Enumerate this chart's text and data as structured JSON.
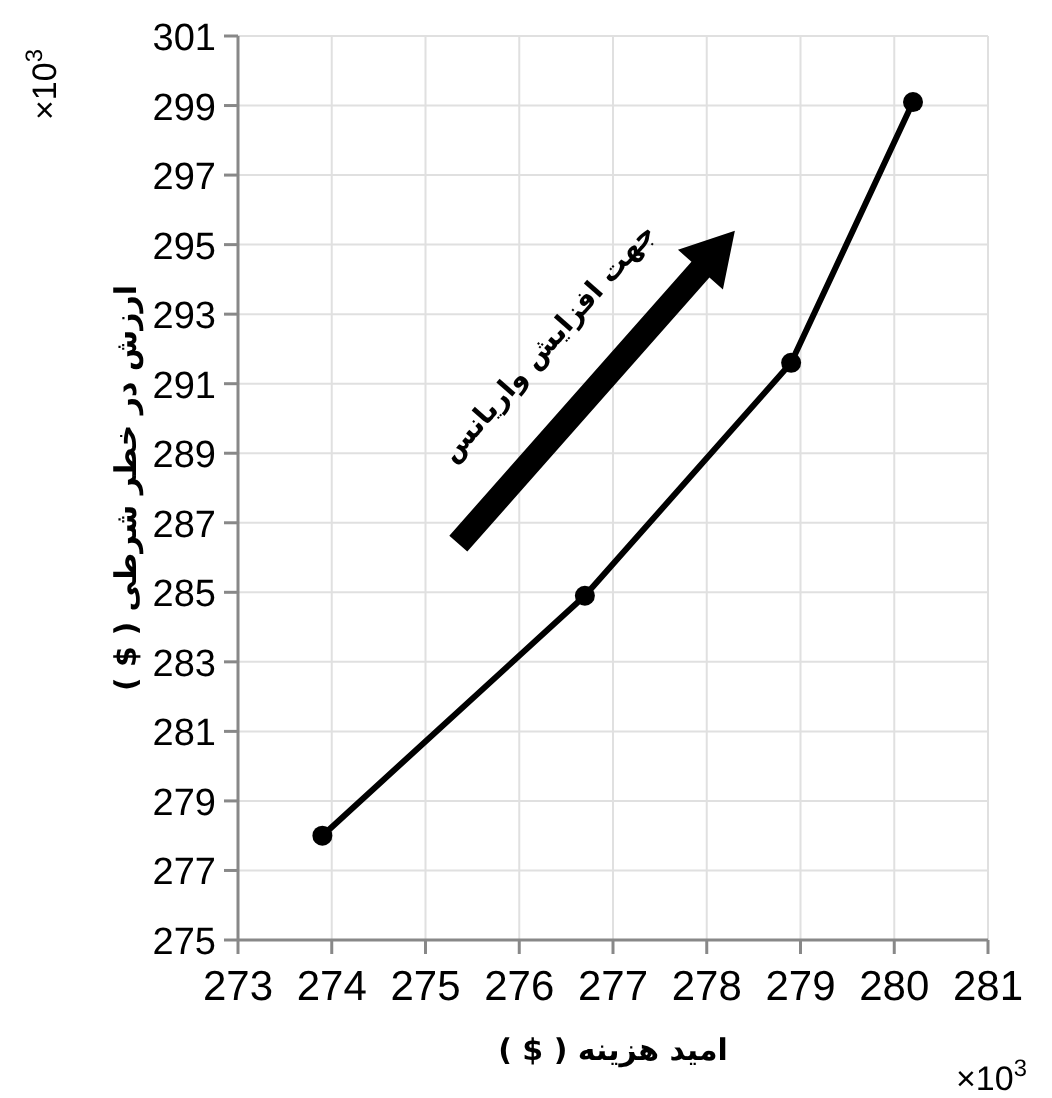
{
  "chart_data": {
    "type": "line",
    "xlabel": "امید هزینه ( $ )",
    "ylabel": "ارزش در خطر شرطی ( $ )",
    "x": [
      273.9,
      276.7,
      278.9,
      280.2
    ],
    "series": [
      {
        "color": "#000000",
        "values": [
          278.0,
          284.9,
          291.6,
          299.1
        ]
      }
    ],
    "xlim": [
      273,
      281
    ],
    "xticks": [
      273,
      274,
      275,
      276,
      277,
      278,
      279,
      280,
      281
    ],
    "ylim": [
      275,
      301
    ],
    "yticks": [
      275,
      277,
      279,
      281,
      283,
      285,
      287,
      289,
      291,
      293,
      295,
      297,
      299,
      301
    ],
    "marker": "circle",
    "grid": true,
    "annotations": [
      "×10$^{3}$",
      "×10$^{3}$",
      "جهت افزایش واریانس"
    ]
  }
}
